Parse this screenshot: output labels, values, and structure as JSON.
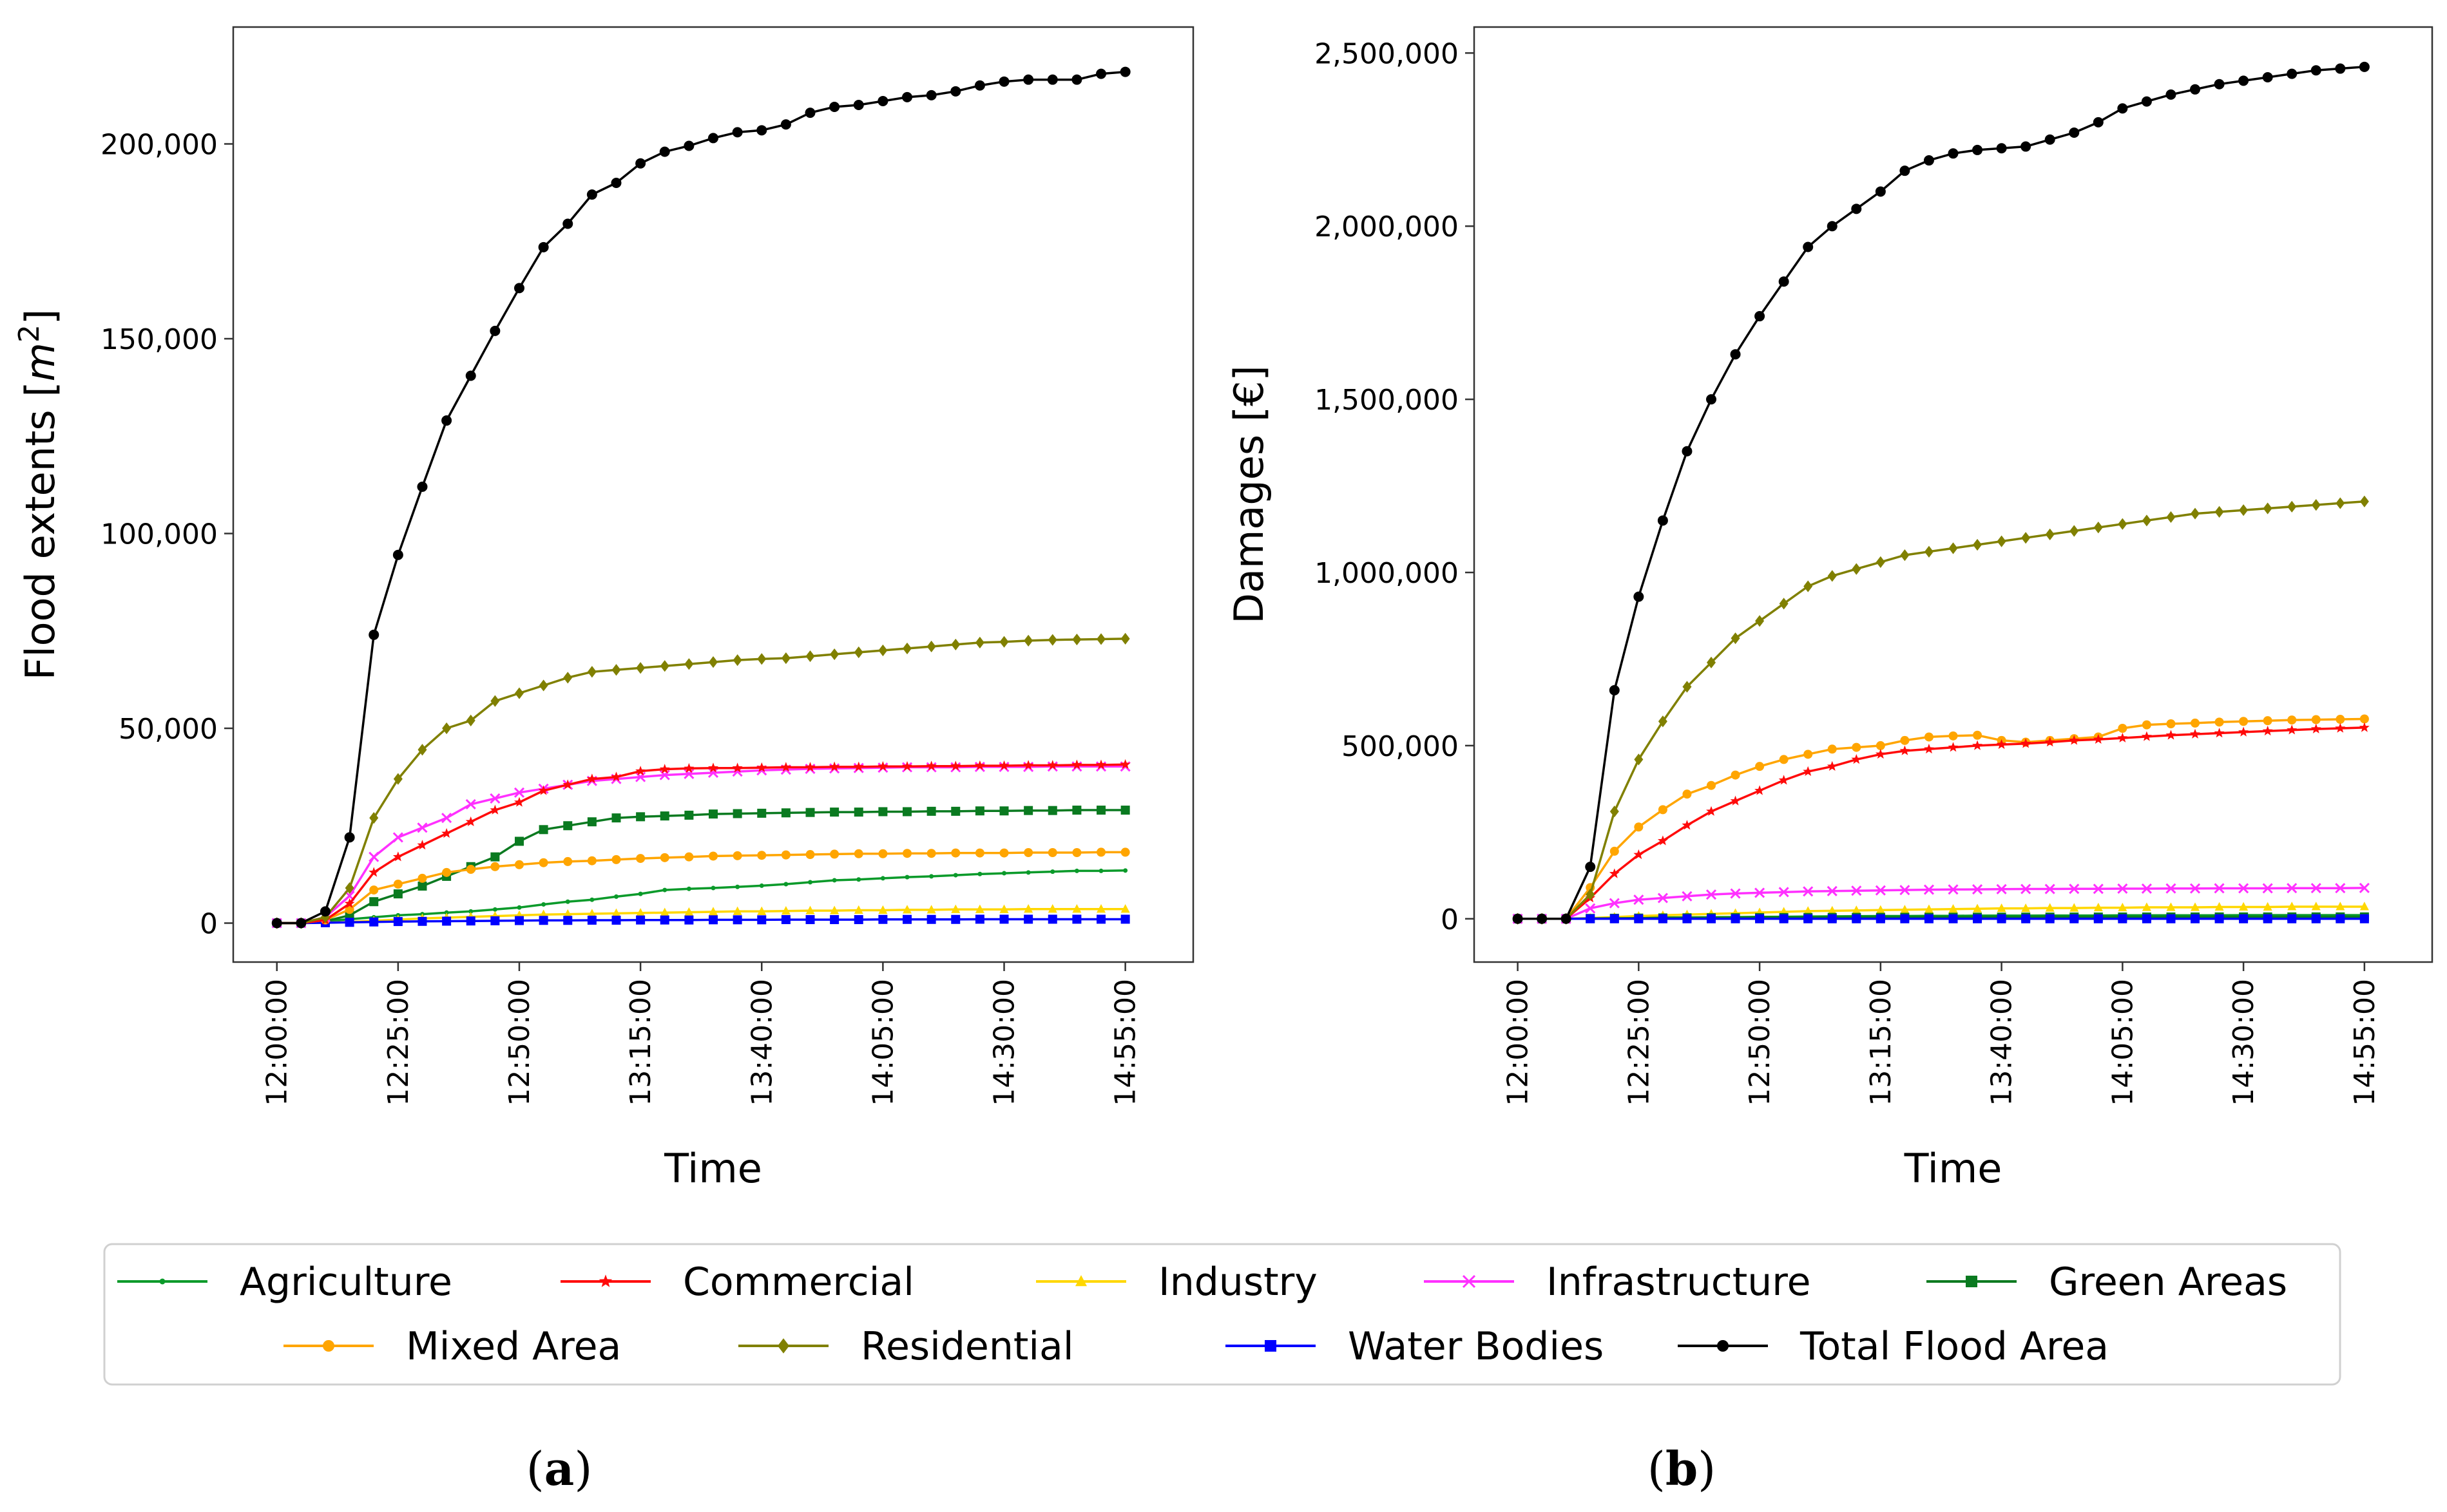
{
  "figure": {
    "panel_labels": [
      {
        "pre": "(",
        "letter": "a",
        "post": ")"
      },
      {
        "pre": "(",
        "letter": "b",
        "post": ")"
      }
    ]
  },
  "legend": {
    "rows": [
      [
        "Agriculture",
        "Commercial",
        "Industry",
        "Infrastructure",
        "Green Areas"
      ],
      [
        "Mixed Area",
        "Residential",
        "Water Bodies",
        "Total Flood Area"
      ]
    ]
  },
  "series_styles": {
    "Agriculture": {
      "color": "#0a9a2a",
      "marker": "dot"
    },
    "Commercial": {
      "color": "#ff0a0a",
      "marker": "star"
    },
    "Industry": {
      "color": "#ffd700",
      "marker": "triangle"
    },
    "Infrastructure": {
      "color": "#ff30ff",
      "marker": "x"
    },
    "Green Areas": {
      "color": "#0a7a20",
      "marker": "square"
    },
    "Mixed Area": {
      "color": "#ffa500",
      "marker": "circle"
    },
    "Residential": {
      "color": "#808000",
      "marker": "diamond"
    },
    "Water Bodies": {
      "color": "#0000ff",
      "marker": "square"
    },
    "Total Flood Area": {
      "color": "#000000",
      "marker": "circle"
    }
  },
  "chart_data": [
    {
      "type": "line",
      "title": "",
      "xlabel": "Time",
      "ylabel_main": "Flood extents [",
      "ylabel_unit": "m",
      "ylabel_sup": "2",
      "ylabel_close": "]",
      "x_start_minutes": 0,
      "x_step_minutes": 5,
      "x_tick_labels": [
        "12:00:00",
        "12:25:00",
        "12:50:00",
        "13:15:00",
        "13:40:00",
        "14:05:00",
        "14:30:00",
        "14:55:00"
      ],
      "x_tick_minutes": [
        0,
        25,
        50,
        75,
        100,
        125,
        150,
        175
      ],
      "xlim": [
        -9,
        189
      ],
      "ylim": [
        -10000,
        230000
      ],
      "y_ticks": [
        0,
        50000,
        100000,
        150000,
        200000
      ],
      "y_tick_labels": [
        "0",
        "50,000",
        "100,000",
        "150,000",
        "200,000"
      ],
      "series": [
        {
          "name": "Agriculture",
          "values": [
            0,
            0,
            500,
            1000,
            1500,
            2000,
            2300,
            2700,
            3000,
            3500,
            4000,
            4800,
            5500,
            6000,
            6800,
            7500,
            8500,
            8800,
            9000,
            9300,
            9600,
            10000,
            10500,
            11000,
            11200,
            11500,
            11800,
            12000,
            12300,
            12600,
            12800,
            13000,
            13200,
            13400,
            13400,
            13500
          ]
        },
        {
          "name": "Commercial",
          "values": [
            0,
            0,
            800,
            5000,
            13000,
            17000,
            20000,
            23000,
            26000,
            29000,
            31000,
            34000,
            35500,
            37000,
            37500,
            39000,
            39500,
            39700,
            39800,
            39800,
            39900,
            40000,
            40000,
            40100,
            40100,
            40200,
            40200,
            40300,
            40300,
            40400,
            40400,
            40500,
            40500,
            40600,
            40600,
            40700
          ]
        },
        {
          "name": "Industry",
          "values": [
            0,
            0,
            100,
            300,
            600,
            900,
            1200,
            1400,
            1600,
            1800,
            2000,
            2200,
            2300,
            2400,
            2500,
            2600,
            2700,
            2800,
            2900,
            3000,
            3000,
            3100,
            3200,
            3200,
            3300,
            3300,
            3400,
            3400,
            3500,
            3500,
            3500,
            3600,
            3600,
            3600,
            3600,
            3600
          ]
        },
        {
          "name": "Infrastructure",
          "values": [
            0,
            0,
            1500,
            7000,
            17000,
            22000,
            24500,
            27000,
            30500,
            32000,
            33500,
            34500,
            35500,
            36500,
            37000,
            37500,
            38000,
            38300,
            38600,
            38900,
            39200,
            39400,
            39600,
            39700,
            39800,
            39900,
            40000,
            40000,
            40000,
            40100,
            40100,
            40100,
            40200,
            40200,
            40200,
            40200
          ]
        },
        {
          "name": "Green Areas",
          "values": [
            0,
            0,
            500,
            2000,
            5500,
            7500,
            9500,
            12000,
            14500,
            17000,
            21000,
            24000,
            25000,
            26000,
            27000,
            27300,
            27500,
            27700,
            28000,
            28100,
            28200,
            28300,
            28400,
            28500,
            28500,
            28600,
            28600,
            28700,
            28700,
            28800,
            28800,
            28900,
            28900,
            29000,
            29000,
            29000
          ]
        },
        {
          "name": "Mixed Area",
          "values": [
            0,
            0,
            800,
            3500,
            8500,
            10000,
            11500,
            13000,
            13800,
            14500,
            15000,
            15500,
            15800,
            16000,
            16300,
            16600,
            16800,
            17000,
            17200,
            17300,
            17400,
            17500,
            17600,
            17700,
            17800,
            17800,
            17900,
            17900,
            18000,
            18000,
            18000,
            18100,
            18100,
            18100,
            18200,
            18200
          ]
        },
        {
          "name": "Residential",
          "values": [
            0,
            0,
            1500,
            9000,
            27000,
            37000,
            44500,
            50000,
            52000,
            57000,
            59000,
            61000,
            63000,
            64500,
            65000,
            65500,
            66000,
            66500,
            67000,
            67500,
            67800,
            68000,
            68500,
            69000,
            69500,
            70000,
            70500,
            71000,
            71500,
            72000,
            72200,
            72500,
            72700,
            72800,
            72900,
            73000
          ]
        },
        {
          "name": "Water Bodies",
          "values": [
            0,
            0,
            100,
            200,
            300,
            400,
            450,
            500,
            550,
            600,
            650,
            700,
            700,
            750,
            750,
            800,
            800,
            800,
            850,
            850,
            850,
            900,
            900,
            900,
            900,
            950,
            950,
            950,
            950,
            1000,
            1000,
            1000,
            1000,
            1000,
            1000,
            1000
          ]
        },
        {
          "name": "Total Flood Area",
          "values": [
            0,
            0,
            3000,
            22000,
            74000,
            94500,
            112000,
            129000,
            140500,
            152000,
            163000,
            173500,
            179500,
            187000,
            190000,
            195000,
            198000,
            199500,
            201500,
            203000,
            203500,
            205000,
            208000,
            209500,
            210000,
            211000,
            212000,
            212500,
            213500,
            215000,
            216000,
            216500,
            216500,
            216500,
            218000,
            218500
          ]
        }
      ]
    },
    {
      "type": "line",
      "title": "",
      "xlabel": "Time",
      "ylabel_main": "Damages [€]",
      "ylabel_unit": "",
      "ylabel_sup": "",
      "ylabel_close": "",
      "x_start_minutes": 0,
      "x_step_minutes": 5,
      "x_tick_labels": [
        "12:00:00",
        "12:25:00",
        "12:50:00",
        "13:15:00",
        "13:40:00",
        "14:05:00",
        "14:30:00",
        "14:55:00"
      ],
      "x_tick_minutes": [
        0,
        25,
        50,
        75,
        100,
        125,
        150,
        175
      ],
      "xlim": [
        -9,
        189
      ],
      "ylim": [
        -125000,
        2575000
      ],
      "y_ticks": [
        0,
        500000,
        1000000,
        1500000,
        2000000,
        2500000
      ],
      "y_tick_labels": [
        "0",
        "500,000",
        "1,000,000",
        "1,500,000",
        "2,000,000",
        "2,500,000"
      ],
      "series": [
        {
          "name": "Agriculture",
          "values": [
            0,
            0,
            0,
            1000,
            2000,
            3000,
            3500,
            4000,
            4500,
            5000,
            5500,
            6000,
            6500,
            7000,
            7500,
            8000,
            8000,
            8500,
            8500,
            9000,
            9000,
            9000,
            9500,
            9500,
            9500,
            10000,
            10000,
            10000,
            10000,
            10000,
            10500,
            10500,
            10500,
            10500,
            10500,
            10500
          ]
        },
        {
          "name": "Commercial",
          "values": [
            0,
            0,
            0,
            60000,
            130000,
            185000,
            225000,
            270000,
            310000,
            340000,
            370000,
            400000,
            425000,
            440000,
            460000,
            475000,
            485000,
            490000,
            495000,
            500000,
            503000,
            506000,
            510000,
            515000,
            518000,
            522000,
            526000,
            530000,
            533000,
            536000,
            539000,
            542000,
            545000,
            548000,
            550000,
            552000
          ]
        },
        {
          "name": "Industry",
          "values": [
            0,
            0,
            0,
            2000,
            5000,
            8000,
            10000,
            12000,
            14000,
            16000,
            18000,
            20000,
            22000,
            23000,
            24000,
            25000,
            26000,
            27000,
            28000,
            29000,
            30000,
            30000,
            31000,
            31000,
            32000,
            32000,
            33000,
            33000,
            33000,
            34000,
            34000,
            34000,
            35000,
            35000,
            35000,
            35000
          ]
        },
        {
          "name": "Infrastructure",
          "values": [
            0,
            0,
            0,
            30000,
            45000,
            55000,
            60000,
            65000,
            70000,
            73000,
            75000,
            77000,
            79000,
            80000,
            81000,
            82000,
            83000,
            84000,
            84500,
            85000,
            85500,
            86000,
            86000,
            86500,
            86500,
            87000,
            87000,
            87500,
            87500,
            88000,
            88000,
            88000,
            88500,
            88500,
            88500,
            89000
          ]
        },
        {
          "name": "Green Areas",
          "values": [
            0,
            0,
            0,
            1000,
            1500,
            2000,
            2500,
            2800,
            3000,
            3200,
            3400,
            3600,
            3800,
            4000,
            4100,
            4200,
            4300,
            4400,
            4500,
            4600,
            4700,
            4800,
            4900,
            5000,
            5000,
            5100,
            5100,
            5200,
            5200,
            5300,
            5300,
            5300,
            5400,
            5400,
            5400,
            5400
          ]
        },
        {
          "name": "Mixed Area",
          "values": [
            0,
            0,
            0,
            90000,
            195000,
            265000,
            315000,
            360000,
            385000,
            415000,
            440000,
            460000,
            475000,
            490000,
            495000,
            500000,
            515000,
            525000,
            528000,
            530000,
            515000,
            510000,
            515000,
            520000,
            525000,
            550000,
            560000,
            563000,
            565000,
            568000,
            570000,
            572000,
            574000,
            575000,
            576000,
            577000
          ]
        },
        {
          "name": "Residential",
          "values": [
            0,
            0,
            0,
            70000,
            310000,
            460000,
            570000,
            670000,
            740000,
            810000,
            860000,
            910000,
            960000,
            990000,
            1010000,
            1030000,
            1050000,
            1060000,
            1070000,
            1080000,
            1090000,
            1100000,
            1110000,
            1120000,
            1130000,
            1140000,
            1150000,
            1160000,
            1170000,
            1175000,
            1180000,
            1185000,
            1190000,
            1195000,
            1200000,
            1205000
          ]
        },
        {
          "name": "Water Bodies",
          "values": [
            0,
            0,
            0,
            0,
            0,
            0,
            0,
            0,
            0,
            0,
            0,
            0,
            0,
            0,
            0,
            0,
            0,
            0,
            0,
            0,
            0,
            0,
            0,
            0,
            0,
            0,
            0,
            0,
            0,
            0,
            0,
            0,
            0,
            0,
            0,
            0
          ]
        },
        {
          "name": "Total Flood Area",
          "values": [
            0,
            0,
            0,
            150000,
            660000,
            930000,
            1150000,
            1350000,
            1500000,
            1630000,
            1740000,
            1840000,
            1940000,
            2000000,
            2050000,
            2100000,
            2160000,
            2190000,
            2210000,
            2220000,
            2225000,
            2230000,
            2250000,
            2270000,
            2300000,
            2340000,
            2360000,
            2380000,
            2395000,
            2410000,
            2420000,
            2430000,
            2440000,
            2450000,
            2455000,
            2460000
          ]
        }
      ]
    }
  ]
}
